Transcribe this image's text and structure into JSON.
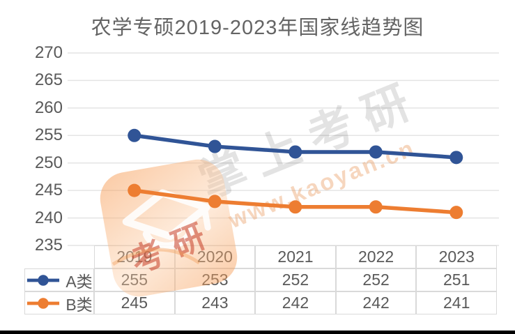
{
  "chart_data": {
    "type": "line",
    "title": "农学专硕2019-2023年国家线趋势图",
    "categories": [
      "2019",
      "2020",
      "2021",
      "2022",
      "2023"
    ],
    "series": [
      {
        "name": "A类",
        "color": "#305496",
        "values": [
          255,
          253,
          252,
          252,
          251
        ]
      },
      {
        "name": "B类",
        "color": "#ED7D31",
        "values": [
          245,
          243,
          242,
          242,
          241
        ]
      }
    ],
    "ylim": [
      235,
      270
    ],
    "yticks": [
      270,
      265,
      260,
      255,
      250,
      245,
      240,
      235
    ],
    "grid": true,
    "gridline_color": "#E4E4E4",
    "text_color": "#595959",
    "legend_position": "table-left-column"
  },
  "watermark": {
    "brand_text": "掌上考研",
    "url_text": "www.kaoyan.cn",
    "seal_text": "考研",
    "logo_icon": "graduation-cap-icon",
    "brand_color": "rgba(0,0,0,0.11)",
    "url_color": "rgba(231,148,84,0.38)",
    "seal_color": "rgba(199,62,38,0.55)",
    "logo_tint": "#F6A35F"
  }
}
